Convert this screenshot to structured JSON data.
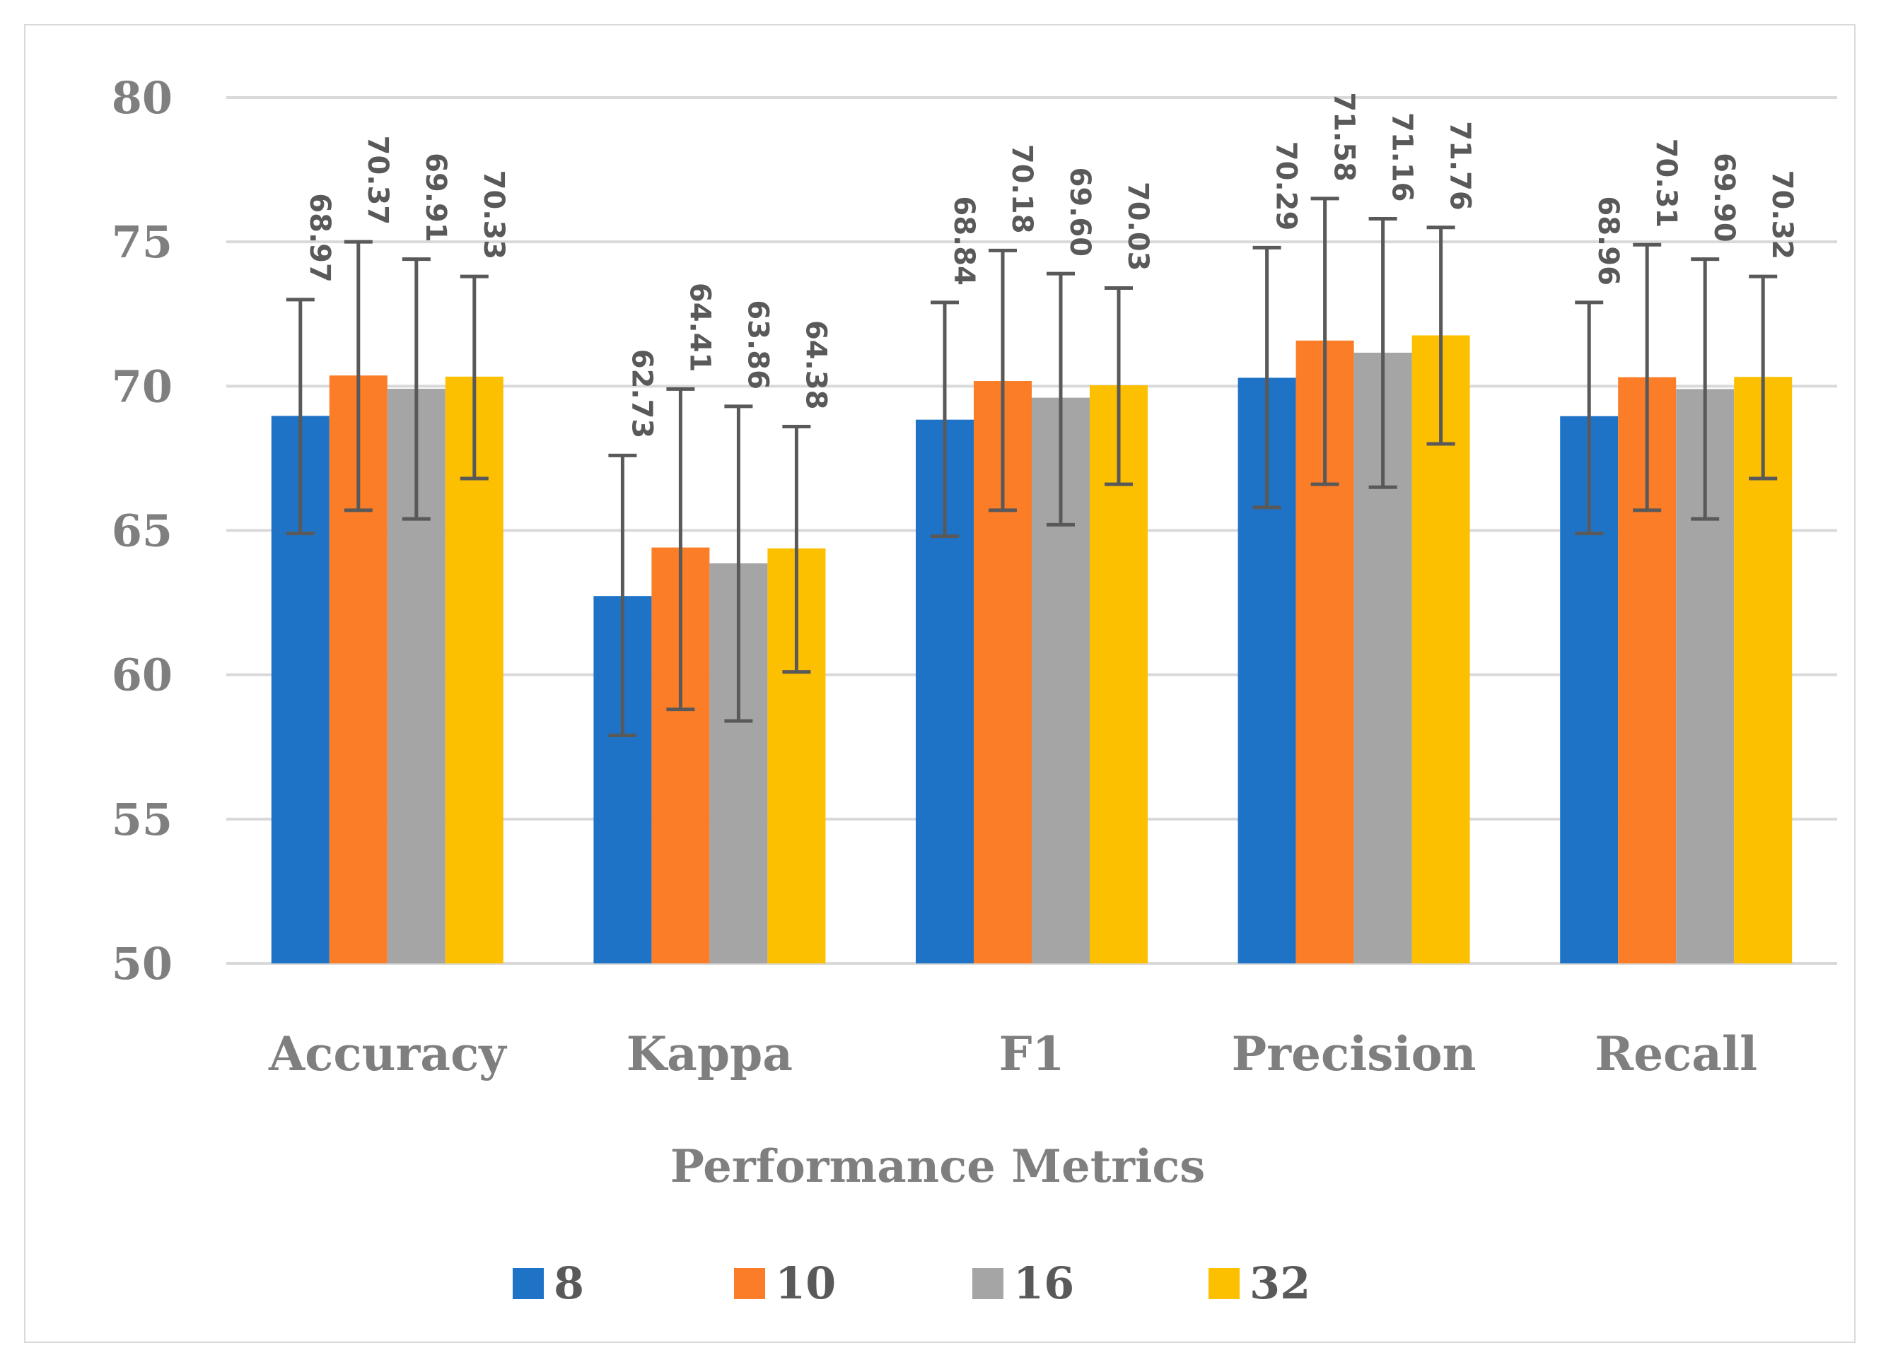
{
  "chart_data": {
    "type": "bar",
    "title": "",
    "xlabel": "Performance Metrics",
    "ylabel": "",
    "ylim": [
      50,
      80
    ],
    "yticks": [
      50,
      55,
      60,
      65,
      70,
      75,
      80
    ],
    "grid": true,
    "legend_position": "bottom",
    "categories": [
      "Accuracy",
      "Kappa",
      "F1",
      "Precision",
      "Recall"
    ],
    "series": [
      {
        "name": "8",
        "color": "#1f73c7",
        "values": [
          68.97,
          62.73,
          68.84,
          70.29,
          68.96
        ],
        "labels": [
          "68.97",
          "62.73",
          "68.84",
          "70.29",
          "68.96"
        ],
        "error_low": [
          64.9,
          57.9,
          64.8,
          65.8,
          64.9
        ],
        "error_high": [
          73.0,
          67.6,
          72.9,
          74.8,
          72.9
        ]
      },
      {
        "name": "10",
        "color": "#fb7d28",
        "values": [
          70.37,
          64.41,
          70.18,
          71.58,
          70.31
        ],
        "labels": [
          "70.37",
          "64.41",
          "70.18",
          "71.58",
          "70.31"
        ],
        "error_low": [
          65.7,
          58.8,
          65.7,
          66.6,
          65.7
        ],
        "error_high": [
          75.0,
          69.9,
          74.7,
          76.5,
          74.9
        ]
      },
      {
        "name": "16",
        "color": "#a5a5a5",
        "values": [
          69.91,
          63.86,
          69.6,
          71.16,
          69.9
        ],
        "labels": [
          "69.91",
          "63.86",
          "69.60",
          "71.16",
          "69.90"
        ],
        "error_low": [
          65.4,
          58.4,
          65.2,
          66.5,
          65.4
        ],
        "error_high": [
          74.4,
          69.3,
          73.9,
          75.8,
          74.4
        ]
      },
      {
        "name": "32",
        "color": "#fdc000",
        "values": [
          70.33,
          64.38,
          70.03,
          71.76,
          70.32
        ],
        "labels": [
          "70.33",
          "64.38",
          "70.03",
          "71.76",
          "70.32"
        ],
        "error_low": [
          66.8,
          60.1,
          66.6,
          68.0,
          66.8
        ],
        "error_high": [
          73.8,
          68.6,
          73.4,
          75.5,
          73.8
        ]
      }
    ]
  }
}
